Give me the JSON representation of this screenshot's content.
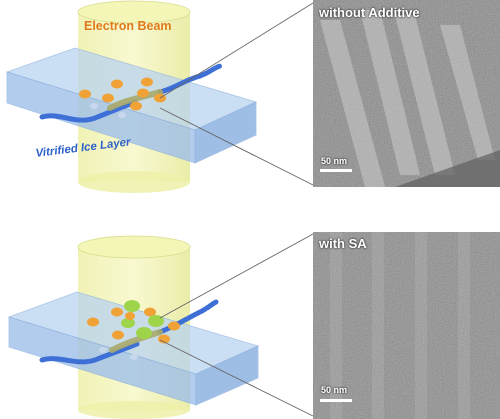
{
  "top_panel": {
    "beam_label": "Electron Beam",
    "ice_label": "Vitrified Ice Layer",
    "micrograph_title": "without Additive",
    "scale_bar": "50 nm"
  },
  "bottom_panel": {
    "micrograph_title": "with SA",
    "scale_bar": "50 nm"
  },
  "colors": {
    "beam": "#f2f2a0",
    "ice": "#a9c9ee",
    "gold_particle": "#f0a236",
    "additive_particle": "#9ed44a",
    "protein": "#3d6fd6",
    "fibril": "#a8a96a",
    "label_orange": "#e07a1c",
    "label_blue": "#2f62c9"
  }
}
